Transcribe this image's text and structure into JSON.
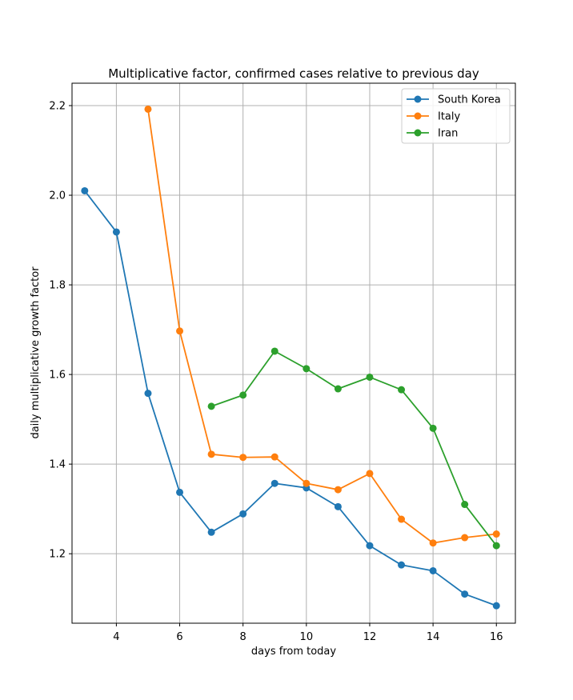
{
  "chart_data": {
    "type": "line",
    "title": "Multiplicative factor, confirmed cases relative to previous day",
    "xlabel": "days from today",
    "ylabel": "daily multiplicative growth factor",
    "xlim": [
      2.6,
      16.6
    ],
    "ylim": [
      1.045,
      2.25
    ],
    "xticks": [
      4,
      6,
      8,
      10,
      12,
      14,
      16
    ],
    "yticks": [
      1.2,
      1.4,
      1.6,
      1.8,
      2.0,
      2.2
    ],
    "xtick_labels": [
      "4",
      "6",
      "8",
      "10",
      "12",
      "14",
      "16"
    ],
    "ytick_labels": [
      "1.2",
      "1.4",
      "1.6",
      "1.8",
      "2.0",
      "2.2"
    ],
    "grid": true,
    "legend_position": "top-right",
    "series": [
      {
        "name": "South Korea",
        "color": "#1f77b4",
        "x": [
          3,
          4,
          5,
          6,
          7,
          8,
          9,
          10,
          11,
          12,
          13,
          14,
          15,
          16
        ],
        "y": [
          2.01,
          1.918,
          1.558,
          1.337,
          1.248,
          1.289,
          1.357,
          1.347,
          1.305,
          1.218,
          1.175,
          1.162,
          1.11,
          1.084
        ]
      },
      {
        "name": "Italy",
        "color": "#ff7f0e",
        "x": [
          5,
          6,
          7,
          8,
          9,
          10,
          11,
          12,
          13,
          14,
          15,
          16
        ],
        "y": [
          2.192,
          1.697,
          1.422,
          1.415,
          1.416,
          1.357,
          1.343,
          1.379,
          1.277,
          1.224,
          1.236,
          1.244
        ]
      },
      {
        "name": "Iran",
        "color": "#2ca02c",
        "x": [
          7,
          8,
          9,
          10,
          11,
          12,
          13,
          14,
          15,
          16
        ],
        "y": [
          1.529,
          1.554,
          1.652,
          1.613,
          1.568,
          1.594,
          1.566,
          1.48,
          1.31,
          1.218
        ]
      }
    ]
  }
}
